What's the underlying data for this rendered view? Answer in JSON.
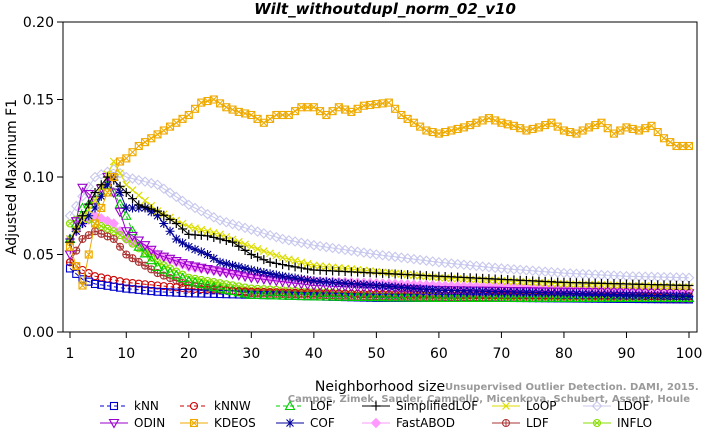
{
  "chart_data": {
    "type": "line",
    "title": "Wilt_withoutdupl_norm_02_v10",
    "xlabel": "Neighborhood size",
    "ylabel": "Adjusted Maximum F1",
    "xlim": [
      1,
      100
    ],
    "ylim": [
      0,
      0.2
    ],
    "x_ticks": [
      1,
      10,
      20,
      30,
      40,
      50,
      60,
      70,
      80,
      90,
      100
    ],
    "y_ticks": [
      "0.00",
      "0.05",
      "0.10",
      "0.15",
      "0.20"
    ],
    "credit_lines": [
      "Unsupervised Outlier Detection. DAMI, 2015.",
      "Campos, Zimek, Sander, Campello, Micenkova, Schubert, Assent, Houle"
    ],
    "series": [
      {
        "name": "kNN",
        "color": "#0000cc",
        "marker": "square",
        "dash": "4,3",
        "points": [
          [
            1,
            0.041
          ],
          [
            3,
            0.034
          ],
          [
            5,
            0.031
          ],
          [
            10,
            0.028
          ],
          [
            15,
            0.026
          ],
          [
            20,
            0.025
          ],
          [
            30,
            0.024
          ],
          [
            40,
            0.023
          ],
          [
            50,
            0.022
          ],
          [
            70,
            0.022
          ],
          [
            100,
            0.021
          ]
        ]
      },
      {
        "name": "kNNW",
        "color": "#cc0000",
        "marker": "circle",
        "dash": "4,3",
        "points": [
          [
            1,
            0.045
          ],
          [
            3,
            0.04
          ],
          [
            5,
            0.036
          ],
          [
            10,
            0.032
          ],
          [
            15,
            0.03
          ],
          [
            20,
            0.028
          ],
          [
            30,
            0.026
          ],
          [
            40,
            0.025
          ],
          [
            60,
            0.024
          ],
          [
            100,
            0.023
          ]
        ]
      },
      {
        "name": "LOF",
        "color": "#00cc00",
        "marker": "triangle",
        "dash": "4,3",
        "points": [
          [
            1,
            0.06
          ],
          [
            3,
            0.08
          ],
          [
            5,
            0.085
          ],
          [
            7,
            0.095
          ],
          [
            8,
            0.09
          ],
          [
            10,
            0.075
          ],
          [
            12,
            0.055
          ],
          [
            15,
            0.042
          ],
          [
            20,
            0.033
          ],
          [
            25,
            0.028
          ],
          [
            30,
            0.024
          ],
          [
            40,
            0.023
          ],
          [
            60,
            0.022
          ],
          [
            100,
            0.022
          ]
        ]
      },
      {
        "name": "SimplifiedLOF",
        "color": "#000000",
        "marker": "plus",
        "dash": "",
        "points": [
          [
            1,
            0.058
          ],
          [
            3,
            0.075
          ],
          [
            5,
            0.09
          ],
          [
            7,
            0.1
          ],
          [
            8,
            0.098
          ],
          [
            10,
            0.09
          ],
          [
            12,
            0.082
          ],
          [
            15,
            0.078
          ],
          [
            18,
            0.07
          ],
          [
            20,
            0.063
          ],
          [
            23,
            0.062
          ],
          [
            27,
            0.058
          ],
          [
            30,
            0.05
          ],
          [
            33,
            0.045
          ],
          [
            37,
            0.042
          ],
          [
            40,
            0.04
          ],
          [
            50,
            0.038
          ],
          [
            60,
            0.036
          ],
          [
            70,
            0.034
          ],
          [
            80,
            0.032
          ],
          [
            90,
            0.031
          ],
          [
            100,
            0.03
          ]
        ]
      },
      {
        "name": "LoOP",
        "color": "#dddd00",
        "marker": "x",
        "dash": "",
        "points": [
          [
            1,
            0.06
          ],
          [
            5,
            0.085
          ],
          [
            8,
            0.11
          ],
          [
            10,
            0.095
          ],
          [
            15,
            0.078
          ],
          [
            20,
            0.068
          ],
          [
            25,
            0.063
          ],
          [
            30,
            0.055
          ],
          [
            35,
            0.048
          ],
          [
            40,
            0.043
          ],
          [
            50,
            0.039
          ],
          [
            60,
            0.035
          ],
          [
            80,
            0.031
          ],
          [
            100,
            0.029
          ]
        ]
      },
      {
        "name": "LDOF",
        "color": "#c8c8ee",
        "marker": "diamond",
        "dash": "",
        "points": [
          [
            1,
            0.075
          ],
          [
            5,
            0.1
          ],
          [
            8,
            0.105
          ],
          [
            10,
            0.1
          ],
          [
            15,
            0.095
          ],
          [
            20,
            0.082
          ],
          [
            25,
            0.072
          ],
          [
            30,
            0.066
          ],
          [
            35,
            0.06
          ],
          [
            40,
            0.056
          ],
          [
            50,
            0.05
          ],
          [
            60,
            0.045
          ],
          [
            70,
            0.041
          ],
          [
            80,
            0.038
          ],
          [
            90,
            0.036
          ],
          [
            100,
            0.035
          ]
        ]
      },
      {
        "name": "ODIN",
        "color": "#9900cc",
        "marker": "triangle-down",
        "dash": "",
        "points": [
          [
            1,
            0.05
          ],
          [
            3,
            0.093
          ],
          [
            5,
            0.085
          ],
          [
            7,
            0.1
          ],
          [
            8,
            0.09
          ],
          [
            10,
            0.065
          ],
          [
            15,
            0.05
          ],
          [
            20,
            0.043
          ],
          [
            30,
            0.035
          ],
          [
            40,
            0.03
          ],
          [
            60,
            0.027
          ],
          [
            100,
            0.025
          ]
        ]
      },
      {
        "name": "KDEOS",
        "color": "#eeaa00",
        "marker": "boxsq",
        "dash": "",
        "points": [
          [
            1,
            0.055
          ],
          [
            3,
            0.03
          ],
          [
            5,
            0.07
          ],
          [
            7,
            0.09
          ],
          [
            9,
            0.11
          ],
          [
            10,
            0.112
          ],
          [
            12,
            0.12
          ],
          [
            14,
            0.125
          ],
          [
            16,
            0.13
          ],
          [
            18,
            0.135
          ],
          [
            20,
            0.14
          ],
          [
            22,
            0.148
          ],
          [
            24,
            0.15
          ],
          [
            26,
            0.145
          ],
          [
            28,
            0.142
          ],
          [
            30,
            0.14
          ],
          [
            32,
            0.135
          ],
          [
            34,
            0.14
          ],
          [
            36,
            0.14
          ],
          [
            38,
            0.145
          ],
          [
            40,
            0.145
          ],
          [
            42,
            0.14
          ],
          [
            44,
            0.145
          ],
          [
            46,
            0.142
          ],
          [
            48,
            0.146
          ],
          [
            50,
            0.147
          ],
          [
            52,
            0.148
          ],
          [
            54,
            0.14
          ],
          [
            56,
            0.135
          ],
          [
            58,
            0.13
          ],
          [
            60,
            0.128
          ],
          [
            62,
            0.13
          ],
          [
            64,
            0.132
          ],
          [
            66,
            0.135
          ],
          [
            68,
            0.138
          ],
          [
            70,
            0.135
          ],
          [
            72,
            0.133
          ],
          [
            74,
            0.13
          ],
          [
            76,
            0.132
          ],
          [
            78,
            0.135
          ],
          [
            80,
            0.13
          ],
          [
            82,
            0.128
          ],
          [
            84,
            0.132
          ],
          [
            86,
            0.135
          ],
          [
            88,
            0.128
          ],
          [
            90,
            0.132
          ],
          [
            92,
            0.13
          ],
          [
            94,
            0.133
          ],
          [
            96,
            0.125
          ],
          [
            98,
            0.12
          ],
          [
            100,
            0.12
          ]
        ]
      },
      {
        "name": "COF",
        "color": "#000099",
        "marker": "star",
        "dash": "",
        "points": [
          [
            1,
            0.06
          ],
          [
            3,
            0.07
          ],
          [
            5,
            0.08
          ],
          [
            7,
            0.095
          ],
          [
            8,
            0.1
          ],
          [
            10,
            0.08
          ],
          [
            13,
            0.08
          ],
          [
            15,
            0.075
          ],
          [
            18,
            0.06
          ],
          [
            20,
            0.055
          ],
          [
            23,
            0.05
          ],
          [
            25,
            0.045
          ],
          [
            30,
            0.04
          ],
          [
            35,
            0.036
          ],
          [
            40,
            0.033
          ],
          [
            50,
            0.03
          ],
          [
            60,
            0.027
          ],
          [
            80,
            0.025
          ],
          [
            100,
            0.023
          ]
        ]
      },
      {
        "name": "FastABOD",
        "color": "#ff99ff",
        "marker": "diamond-filled",
        "dash": "",
        "points": [
          [
            1,
            0.06
          ],
          [
            3,
            0.07
          ],
          [
            5,
            0.075
          ],
          [
            8,
            0.07
          ],
          [
            10,
            0.06
          ],
          [
            15,
            0.05
          ],
          [
            20,
            0.042
          ],
          [
            30,
            0.036
          ],
          [
            40,
            0.033
          ],
          [
            60,
            0.03
          ],
          [
            80,
            0.028
          ],
          [
            100,
            0.027
          ]
        ]
      },
      {
        "name": "LDF",
        "color": "#aa3333",
        "marker": "circle-plus",
        "dash": "",
        "points": [
          [
            1,
            0.045
          ],
          [
            3,
            0.06
          ],
          [
            5,
            0.065
          ],
          [
            8,
            0.06
          ],
          [
            10,
            0.05
          ],
          [
            15,
            0.038
          ],
          [
            20,
            0.03
          ],
          [
            30,
            0.025
          ],
          [
            50,
            0.023
          ],
          [
            100,
            0.021
          ]
        ]
      },
      {
        "name": "INFLO",
        "color": "#88dd00",
        "marker": "circle-x",
        "dash": "",
        "points": [
          [
            1,
            0.07
          ],
          [
            3,
            0.075
          ],
          [
            5,
            0.07
          ],
          [
            8,
            0.065
          ],
          [
            10,
            0.06
          ],
          [
            15,
            0.045
          ],
          [
            20,
            0.035
          ],
          [
            30,
            0.028
          ],
          [
            50,
            0.024
          ],
          [
            100,
            0.022
          ]
        ]
      }
    ],
    "legend": {
      "position": "bottom",
      "rows": [
        [
          "kNN",
          "kNNW",
          "LOF",
          "SimplifiedLOF",
          "LoOP",
          "LDOF"
        ],
        [
          "ODIN",
          "KDEOS",
          "COF",
          "FastABOD",
          "LDF",
          "INFLO"
        ]
      ]
    }
  }
}
